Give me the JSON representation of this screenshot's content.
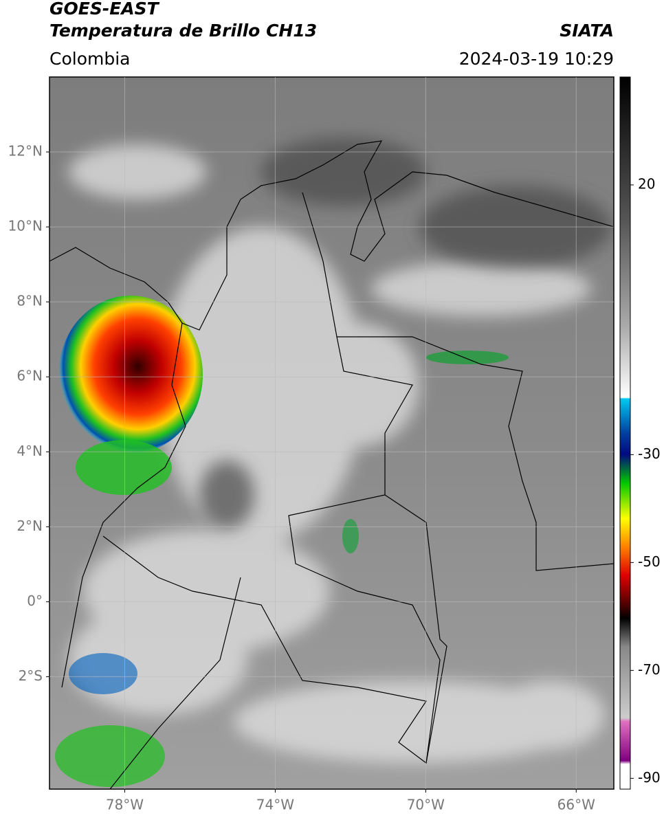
{
  "header": {
    "title": "GOES-EAST",
    "subtitle": "Temperatura de Brillo CH13",
    "source": "SIATA",
    "region": "Colombia",
    "timestamp": "2024-03-19 10:29"
  },
  "map": {
    "xlim": [
      -80,
      -65
    ],
    "ylim": [
      -5,
      14
    ],
    "xticks": [
      {
        "value": -78,
        "label": "78°W"
      },
      {
        "value": -74,
        "label": "74°W"
      },
      {
        "value": -70,
        "label": "70°W"
      },
      {
        "value": -66,
        "label": "66°W"
      }
    ],
    "yticks": [
      {
        "value": 12,
        "label": "12°N"
      },
      {
        "value": 10,
        "label": "10°N"
      },
      {
        "value": 8,
        "label": "8°N"
      },
      {
        "value": 6,
        "label": "6°N"
      },
      {
        "value": 4,
        "label": "4°N"
      },
      {
        "value": 2,
        "label": "2°N"
      },
      {
        "value": 0,
        "label": "0°"
      },
      {
        "value": -2,
        "label": "2°S"
      }
    ],
    "grid": true
  },
  "colorbar": {
    "lim": [
      -92,
      40
    ],
    "ticks": [
      20,
      -30,
      -50,
      -70,
      -90
    ]
  }
}
